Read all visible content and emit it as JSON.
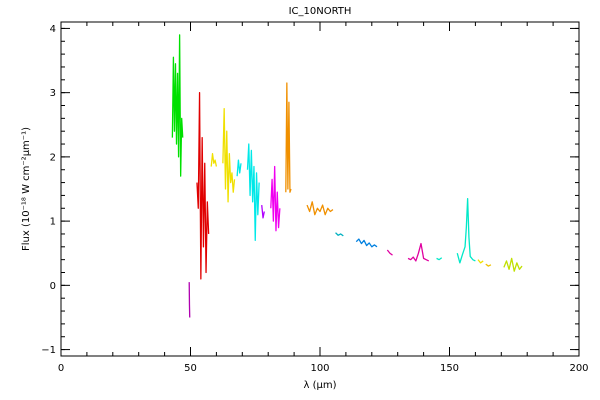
{
  "chart_data": {
    "type": "line",
    "title": "IC_10NORTH",
    "xlabel": "λ (μm)",
    "ylabel": "Flux (10⁻¹⁸ W cm⁻²μm⁻¹)",
    "xlim": [
      0,
      200
    ],
    "ylim": [
      -1.1,
      4.1
    ],
    "x_ticks": [
      0,
      50,
      100,
      150,
      200
    ],
    "x_tick_labels": [
      "0",
      "50",
      "100",
      "150",
      "200"
    ],
    "y_ticks": [
      -1,
      0,
      1,
      2,
      3,
      4
    ],
    "y_tick_labels": [
      "−1",
      "0",
      "1",
      "2",
      "3",
      "4"
    ],
    "x_minor_step": 10,
    "y_minor_step": 0.2,
    "grid": false,
    "legend": "none",
    "series": [
      {
        "color": "#00e000",
        "x": [
          43.0,
          43.4,
          43.8,
          44.2,
          44.6,
          45.0,
          45.4,
          45.8,
          46.2,
          46.6,
          47.0
        ],
        "y": [
          2.3,
          3.55,
          2.4,
          3.45,
          2.2,
          3.3,
          2.0,
          3.9,
          1.7,
          2.6,
          2.3
        ]
      },
      {
        "color": "#b000b0",
        "x": [
          49.5,
          49.6,
          49.7
        ],
        "y": [
          0.05,
          -0.3,
          -0.5
        ]
      },
      {
        "color": "#e00000",
        "x": [
          52.5,
          53.0,
          53.5,
          54.0,
          54.5,
          55.0,
          55.5,
          56.0,
          56.5,
          57.0
        ],
        "y": [
          1.6,
          1.2,
          3.0,
          0.1,
          2.3,
          0.6,
          1.9,
          0.2,
          1.3,
          0.8
        ]
      },
      {
        "color": "#f0e000",
        "x": [
          58.0,
          58.5,
          59.0,
          59.5,
          60.0
        ],
        "y": [
          1.85,
          2.05,
          1.9,
          1.95,
          1.85
        ]
      },
      {
        "color": "#f0e000",
        "x": [
          62.5,
          63.0,
          63.5,
          64.0,
          64.5,
          65.0,
          65.5,
          66.0,
          66.5,
          67.0
        ],
        "y": [
          1.9,
          2.75,
          1.5,
          2.4,
          1.3,
          2.05,
          1.6,
          1.75,
          1.45,
          1.65
        ]
      },
      {
        "color": "#00e8e8",
        "x": [
          68.0,
          68.5,
          69.0,
          69.5
        ],
        "y": [
          1.7,
          1.95,
          1.75,
          1.9
        ]
      },
      {
        "color": "#00e8e8",
        "x": [
          72.0,
          72.5,
          73.0,
          73.5,
          74.0,
          74.5,
          75.0,
          75.5,
          76.0,
          76.5
        ],
        "y": [
          1.8,
          2.2,
          1.4,
          2.1,
          1.3,
          1.85,
          0.7,
          1.75,
          1.1,
          1.6
        ]
      },
      {
        "color": "#b000ff",
        "x": [
          77.5,
          78.0,
          78.5
        ],
        "y": [
          1.25,
          1.05,
          1.15
        ]
      },
      {
        "color": "#f000f0",
        "x": [
          81.0,
          81.5,
          82.0,
          82.5,
          83.0,
          83.5,
          84.0,
          84.5
        ],
        "y": [
          1.2,
          1.65,
          1.0,
          1.85,
          0.85,
          1.45,
          0.9,
          1.2
        ]
      },
      {
        "color": "#f09000",
        "x": [
          86.8,
          87.2,
          87.6,
          88.0,
          88.4,
          88.8
        ],
        "y": [
          1.45,
          3.15,
          1.5,
          2.85,
          1.45,
          1.5
        ]
      },
      {
        "color": "#f09000",
        "x": [
          95,
          96,
          97,
          98,
          99,
          100,
          101,
          102,
          103,
          104,
          105
        ],
        "y": [
          1.25,
          1.15,
          1.3,
          1.1,
          1.2,
          1.15,
          1.25,
          1.1,
          1.2,
          1.15,
          1.18
        ]
      },
      {
        "color": "#00b0c0",
        "x": [
          106,
          107,
          108,
          109
        ],
        "y": [
          0.82,
          0.78,
          0.8,
          0.77
        ]
      },
      {
        "color": "#0080e0",
        "x": [
          114,
          115,
          116,
          117,
          118,
          119,
          120,
          121,
          122
        ],
        "y": [
          0.68,
          0.72,
          0.65,
          0.7,
          0.62,
          0.66,
          0.6,
          0.63,
          0.6
        ]
      },
      {
        "color": "#e000a0",
        "x": [
          126,
          127,
          128
        ],
        "y": [
          0.55,
          0.5,
          0.47
        ]
      },
      {
        "color": "#e000a0",
        "x": [
          134,
          135,
          136,
          137,
          138,
          139,
          140,
          141,
          142
        ],
        "y": [
          0.42,
          0.4,
          0.44,
          0.38,
          0.5,
          0.65,
          0.42,
          0.4,
          0.38
        ]
      },
      {
        "color": "#00e8c8",
        "x": [
          145,
          146,
          147
        ],
        "y": [
          0.42,
          0.4,
          0.43
        ]
      },
      {
        "color": "#00e8c8",
        "x": [
          153,
          154,
          155,
          156,
          156.5,
          157,
          157.5,
          158,
          159,
          160
        ],
        "y": [
          0.5,
          0.35,
          0.48,
          0.6,
          0.9,
          1.35,
          0.75,
          0.45,
          0.4,
          0.38
        ]
      },
      {
        "color": "#f0e000",
        "x": [
          161,
          162,
          163
        ],
        "y": [
          0.4,
          0.35,
          0.38
        ]
      },
      {
        "color": "#f0c000",
        "x": [
          164,
          165,
          166
        ],
        "y": [
          0.33,
          0.3,
          0.32
        ]
      },
      {
        "color": "#c0e000",
        "x": [
          171,
          172,
          173,
          174,
          175,
          176,
          177,
          178
        ],
        "y": [
          0.28,
          0.38,
          0.25,
          0.42,
          0.22,
          0.35,
          0.25,
          0.3
        ]
      }
    ]
  }
}
